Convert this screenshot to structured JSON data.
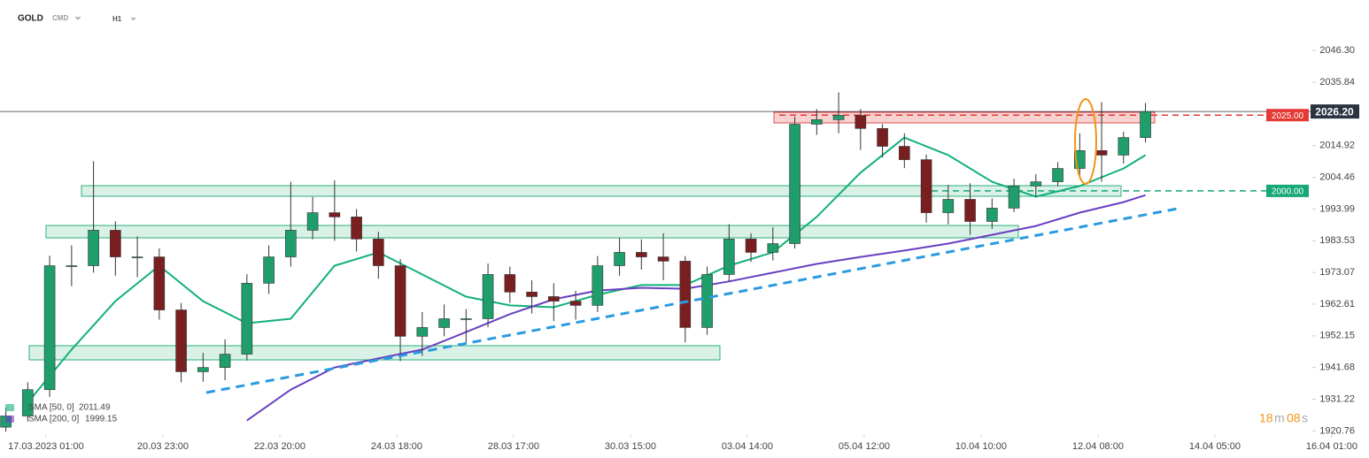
{
  "header": {
    "symbol": "GOLD",
    "market": "CMD",
    "interval": "H1"
  },
  "countdown": {
    "minutes": "18",
    "minutes_unit": "m",
    "seconds": "08",
    "seconds_unit": "s"
  },
  "chart_data": {
    "type": "candlestick",
    "up_color": "#1f9d6b",
    "down_color": "#7a1f1f",
    "x": [
      -11,
      -5,
      1,
      7,
      13,
      19,
      25,
      31,
      37,
      43,
      49,
      55,
      61,
      67,
      73,
      79,
      85,
      91,
      97,
      103,
      109,
      115,
      121,
      127,
      133,
      139,
      145,
      151,
      157,
      163,
      169,
      175,
      181,
      187,
      193,
      199,
      205,
      211,
      217,
      223,
      229,
      235,
      241,
      247,
      253,
      259,
      265,
      271,
      277,
      283,
      289,
      295,
      301
    ],
    "open": [
      1922.0,
      1925.7,
      1934.4,
      1975.3,
      1975.3,
      1987.0,
      1978.2,
      1978.2,
      1960.7,
      1940.3,
      1941.7,
      1946.1,
      1969.5,
      1978.2,
      1987.0,
      1992.8,
      1991.4,
      1984.1,
      1975.3,
      1952.0,
      1954.9,
      1957.8,
      1957.8,
      1972.4,
      1966.6,
      1965.1,
      1963.6,
      1962.2,
      1975.3,
      1979.7,
      1978.2,
      1976.8,
      1954.9,
      1972.4,
      1984.1,
      1979.7,
      1982.6,
      2022.0,
      2023.5,
      2024.9,
      2020.6,
      2014.7,
      2010.3,
      1992.8,
      1997.2,
      1989.9,
      1994.3,
      2001.6,
      2003.0,
      2007.4,
      2013.3,
      2011.8,
      2017.6
    ],
    "high": [
      1928.5,
      1936.8,
      1978.6,
      1982.0,
      2009.8,
      1990.0,
      1985.0,
      1981.0,
      1963.0,
      1946.5,
      1951.0,
      1972.5,
      1982.0,
      2003.0,
      1998.0,
      2003.5,
      1994.0,
      1986.5,
      1977.5,
      1960.0,
      1962.5,
      1961.0,
      1976.0,
      1975.0,
      1970.5,
      1969.5,
      1967.0,
      1978.5,
      1984.5,
      1984.0,
      1986.0,
      1978.5,
      1975.0,
      1989.0,
      1986.0,
      1988.0,
      2024.5,
      2027.0,
      2032.5,
      2027.0,
      2022.0,
      2019.0,
      2012.0,
      2002.0,
      2002.5,
      1997.5,
      2004.0,
      2005.5,
      2009.5,
      2019.0,
      2029.3,
      2019.5,
      2029.0
    ],
    "low": [
      1920.5,
      1923.9,
      1932.0,
      1968.5,
      1973.0,
      1972.0,
      1971.5,
      1957.5,
      1936.8,
      1937.0,
      1937.5,
      1944.0,
      1966.0,
      1975.0,
      1984.0,
      1983.5,
      1980.0,
      1971.0,
      1943.8,
      1945.5,
      1952.0,
      1949.5,
      1955.0,
      1963.0,
      1959.5,
      1957.0,
      1957.5,
      1960.0,
      1972.0,
      1974.0,
      1970.5,
      1950.0,
      1952.5,
      1970.0,
      1976.5,
      1977.0,
      1981.0,
      2018.5,
      2019.0,
      2013.5,
      2011.0,
      2007.5,
      1989.5,
      1989.0,
      1985.5,
      1987.5,
      1993.0,
      1998.0,
      2001.5,
      2005.0,
      2003.0,
      2009.0,
      2016.0
    ],
    "close": [
      1925.7,
      1934.4,
      1975.3,
      1975.3,
      1987.0,
      1978.2,
      1978.2,
      1960.7,
      1940.3,
      1941.7,
      1946.1,
      1969.5,
      1978.2,
      1987.0,
      1992.8,
      1991.4,
      1984.1,
      1975.3,
      1952.0,
      1954.9,
      1957.8,
      1957.8,
      1972.4,
      1966.6,
      1965.1,
      1963.6,
      1962.2,
      1975.3,
      1979.7,
      1978.2,
      1976.8,
      1954.9,
      1972.4,
      1984.1,
      1979.7,
      1982.6,
      2022.0,
      2023.5,
      2024.9,
      2020.6,
      2014.7,
      2010.3,
      1992.8,
      1997.2,
      1989.9,
      1994.3,
      2001.6,
      2003.0,
      2007.4,
      2013.3,
      2011.8,
      2017.6,
      2026.2
    ],
    "series": [
      {
        "name": "SMA [50, 0]",
        "color": "#12b07a",
        "last_value": 2011.49,
        "x": [
          -5,
          7,
          19,
          31,
          43,
          55,
          67,
          79,
          91,
          103,
          115,
          127,
          139,
          151,
          163,
          175,
          187,
          199,
          211,
          223,
          235,
          247,
          259,
          271,
          283,
          295,
          301
        ],
        "values": [
          1930.1,
          1947.6,
          1963.6,
          1975.3,
          1963.6,
          1956.3,
          1957.8,
          1975.3,
          1979.7,
          1972.4,
          1965.1,
          1962.2,
          1961.6,
          1965.7,
          1968.9,
          1968.9,
          1975.3,
          1979.7,
          1991.4,
          2006.0,
          2017.6,
          2011.8,
          2003.0,
          1998.1,
          2001.6,
          2007.4,
          2011.8
        ]
      },
      {
        "name": "SMA [200, 0]",
        "color": "#6a3fc1",
        "last_value": 1999.15,
        "x": [
          55,
          67,
          79,
          91,
          103,
          115,
          127,
          139,
          151,
          163,
          175,
          187,
          199,
          211,
          223,
          235,
          247,
          259,
          271,
          283,
          295,
          301
        ],
        "values": [
          1924.2,
          1934.4,
          1941.7,
          1944.7,
          1947.6,
          1953.4,
          1959.3,
          1964.2,
          1967.1,
          1968.0,
          1967.7,
          1970.1,
          1973.0,
          1975.9,
          1978.2,
          1980.3,
          1982.6,
          1985.5,
          1988.4,
          1992.8,
          1996.3,
          1998.6
        ]
      }
    ],
    "levels": [
      {
        "value": 2025,
        "label": "2025.00",
        "color": "#e53935"
      },
      {
        "value": 2000,
        "label": "2000.00",
        "color": "#16a878"
      }
    ],
    "last_price": {
      "value": 2026.2,
      "label": "2026.20"
    },
    "ylim": [
      1920,
      2063
    ],
    "yticks": [
      {
        "value": 2046.3,
        "label": "2046.30"
      },
      {
        "value": 2035.84,
        "label": "2035.84"
      },
      {
        "value": 2014.92,
        "label": "2014.92"
      },
      {
        "value": 2004.46,
        "label": "2004.46"
      },
      {
        "value": 1993.99,
        "label": "1993.99"
      },
      {
        "value": 1983.53,
        "label": "1983.53"
      },
      {
        "value": 1973.07,
        "label": "1973.07"
      },
      {
        "value": 1962.61,
        "label": "1962.61"
      },
      {
        "value": 1952.15,
        "label": "1952.15"
      },
      {
        "value": 1941.68,
        "label": "1941.68"
      },
      {
        "value": 1931.22,
        "label": "1931.22"
      },
      {
        "value": 1920.76,
        "label": "1920.76"
      }
    ],
    "xlim": [
      -12.6,
      362.2
    ],
    "xticks": [
      {
        "value": 0,
        "label": "17.03.2023 01:00"
      },
      {
        "value": 32,
        "label": "20.03 23:00"
      },
      {
        "value": 64,
        "label": "22.03 20:00"
      },
      {
        "value": 96,
        "label": "24.03 18:00"
      },
      {
        "value": 128,
        "label": "28.03 17:00"
      },
      {
        "value": 160,
        "label": "30.03 15:00"
      },
      {
        "value": 192,
        "label": "03.04 14:00"
      },
      {
        "value": 224,
        "label": "05.04 12:00"
      },
      {
        "value": 256,
        "label": "10.04 10:00"
      },
      {
        "value": 288,
        "label": "12.04 08:00"
      },
      {
        "value": 320,
        "label": "14.04 05:00"
      },
      {
        "value": 352,
        "label": "16.04 01:00"
      }
    ]
  }
}
